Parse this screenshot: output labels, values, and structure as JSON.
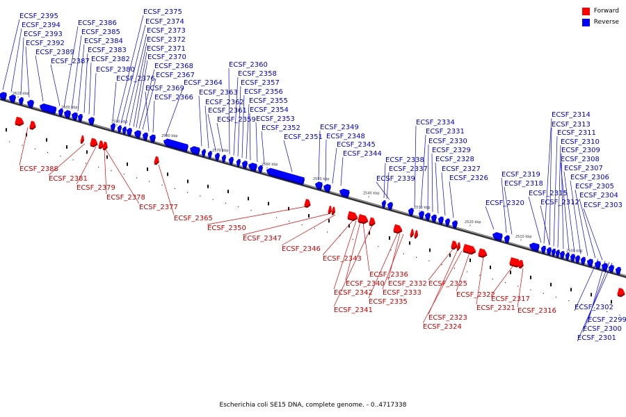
{
  "legend": {
    "forward_label": "Forward",
    "reverse_label": "Reverse",
    "forward_color": "#ff0000",
    "reverse_color": "#0000ff"
  },
  "caption": "Escherichia coli SE15 DNA, complete genome. - 0..4717338",
  "scale_ticks": [
    {
      "label": "2610 kbp"
    },
    {
      "label": "2600 kbp"
    },
    {
      "label": "2590 kbp"
    },
    {
      "label": "2580 kbp"
    },
    {
      "label": "2570 kbp"
    },
    {
      "label": "2560 kbp"
    },
    {
      "label": "2550 kbp"
    },
    {
      "label": "2540 kbp"
    },
    {
      "label": "2530 kbp"
    },
    {
      "label": "2520 kbp"
    },
    {
      "label": "2510 kbp"
    },
    {
      "label": "2500 kbp"
    }
  ],
  "reverse_genes": [
    "ECSF_2395",
    "ECSF_2394",
    "ECSF_2393",
    "ECSF_2392",
    "ECSF_2389",
    "ECSF_2387",
    "ECSF_2386",
    "ECSF_2385",
    "ECSF_2384",
    "ECSF_2383",
    "ECSF_2382",
    "ECSF_2380",
    "ECSF_2376",
    "ECSF_2375",
    "ECSF_2374",
    "ECSF_2373",
    "ECSF_2372",
    "ECSF_2371",
    "ECSF_2370",
    "ECSF_2368",
    "ECSF_2367",
    "ECSF_2369",
    "ECSF_2366",
    "ECSF_2364",
    "ECSF_2363",
    "ECSF_2362",
    "ECSF_2361",
    "ECSF_2359",
    "ECSF_2360",
    "ECSF_2358",
    "ECSF_2357",
    "ECSF_2356",
    "ECSF_2355",
    "ECSF_2354",
    "ECSF_2353",
    "ECSF_2352",
    "ECSF_2351",
    "ECSF_2349",
    "ECSF_2348",
    "ECSF_2345",
    "ECSF_2344",
    "ECSF_2338",
    "ECSF_2337",
    "ECSF_2339",
    "ECSF_2334",
    "ECSF_2331",
    "ECSF_2330",
    "ECSF_2329",
    "ECSF_2328",
    "ECSF_2327",
    "ECSF_2326",
    "ECSF_2320",
    "ECSF_2319",
    "ECSF_2318",
    "ECSF_2315",
    "ECSF_2312",
    "ECSF_2314",
    "ECSF_2313",
    "ECSF_2311",
    "ECSF_2310",
    "ECSF_2309",
    "ECSF_2308",
    "ECSF_2307",
    "ECSF_2306",
    "ECSF_2305",
    "ECSF_2304",
    "ECSF_2303",
    "ECSF_2302",
    "ECSF_2299",
    "ECSF_2300",
    "ECSF_2301"
  ],
  "forward_genes": [
    "ECSF_2388",
    "ECSF_2381",
    "ECSF_2379",
    "ECSF_2378",
    "ECSF_2377",
    "ECSF_2365",
    "ECSF_2350",
    "ECSF_2347",
    "ECSF_2346",
    "ECSF_2343",
    "ECSF_2336",
    "ECSF_2340",
    "ECSF_2332",
    "ECSF_2342",
    "ECSF_2333",
    "ECSF_2341",
    "ECSF_2335",
    "ECSF_2325",
    "ECSF_2322",
    "ECSF_2321",
    "ECSF_2323",
    "ECSF_2324",
    "ECSF_2317",
    "ECSF_2316"
  ]
}
